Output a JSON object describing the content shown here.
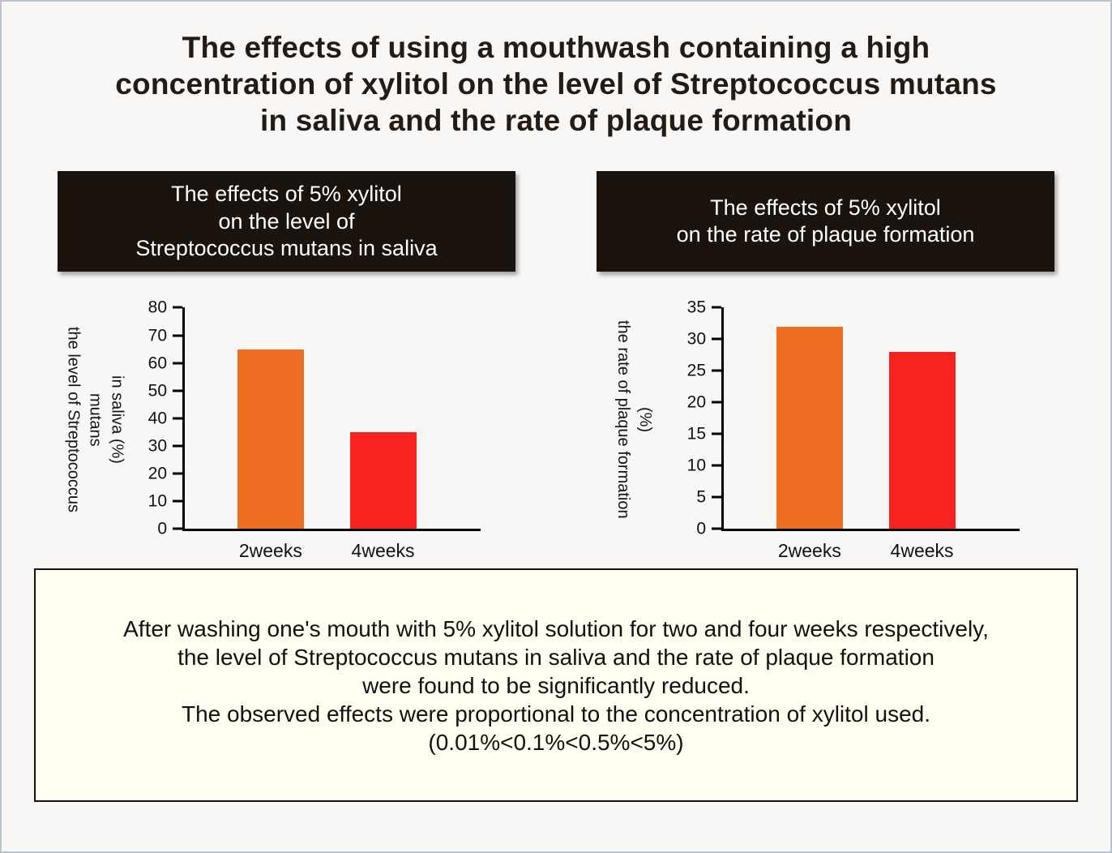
{
  "page": {
    "title": "The effects of using a mouthwash containing a high\nconcentration of xylitol on the level of Streptococcus mutans\nin saliva and the rate of plaque formation"
  },
  "colors": {
    "header_bg": "#1b130e",
    "note_bg": "#fffef0",
    "bar_orange": "#ed6d21",
    "bar_red": "#f7231f",
    "axis": "#000000"
  },
  "chart_data": [
    {
      "type": "bar",
      "title": "The effects of 5% xylitol\non the level of\nStreptococcus mutans in saliva",
      "ylabel": "the level of Streptococcus\nmutans\nin saliva (%)",
      "categories": [
        "2weeks",
        "4weeks"
      ],
      "values": [
        65,
        35
      ],
      "ylim": [
        0,
        80
      ],
      "ytick_step": 10,
      "bar_colors": [
        "#ed6d21",
        "#f7231f"
      ],
      "grid": false,
      "legend": false
    },
    {
      "type": "bar",
      "title": "The effects of 5% xylitol\non the rate of plaque formation",
      "ylabel": "the rate of plaque formation\n(%)",
      "categories": [
        "2weeks",
        "4weeks"
      ],
      "values": [
        32,
        28
      ],
      "ylim": [
        0,
        35
      ],
      "ytick_step": 5,
      "bar_colors": [
        "#ed6d21",
        "#f7231f"
      ],
      "grid": false,
      "legend": false
    }
  ],
  "note": "After washing one's mouth with 5% xylitol solution for two and four weeks respectively,\nthe level of Streptococcus mutans in saliva and the rate of plaque formation\nwere found to be significantly reduced.\nThe observed effects were proportional to the concentration of xylitol used.\n(0.01%<0.1%<0.5%<5%)"
}
